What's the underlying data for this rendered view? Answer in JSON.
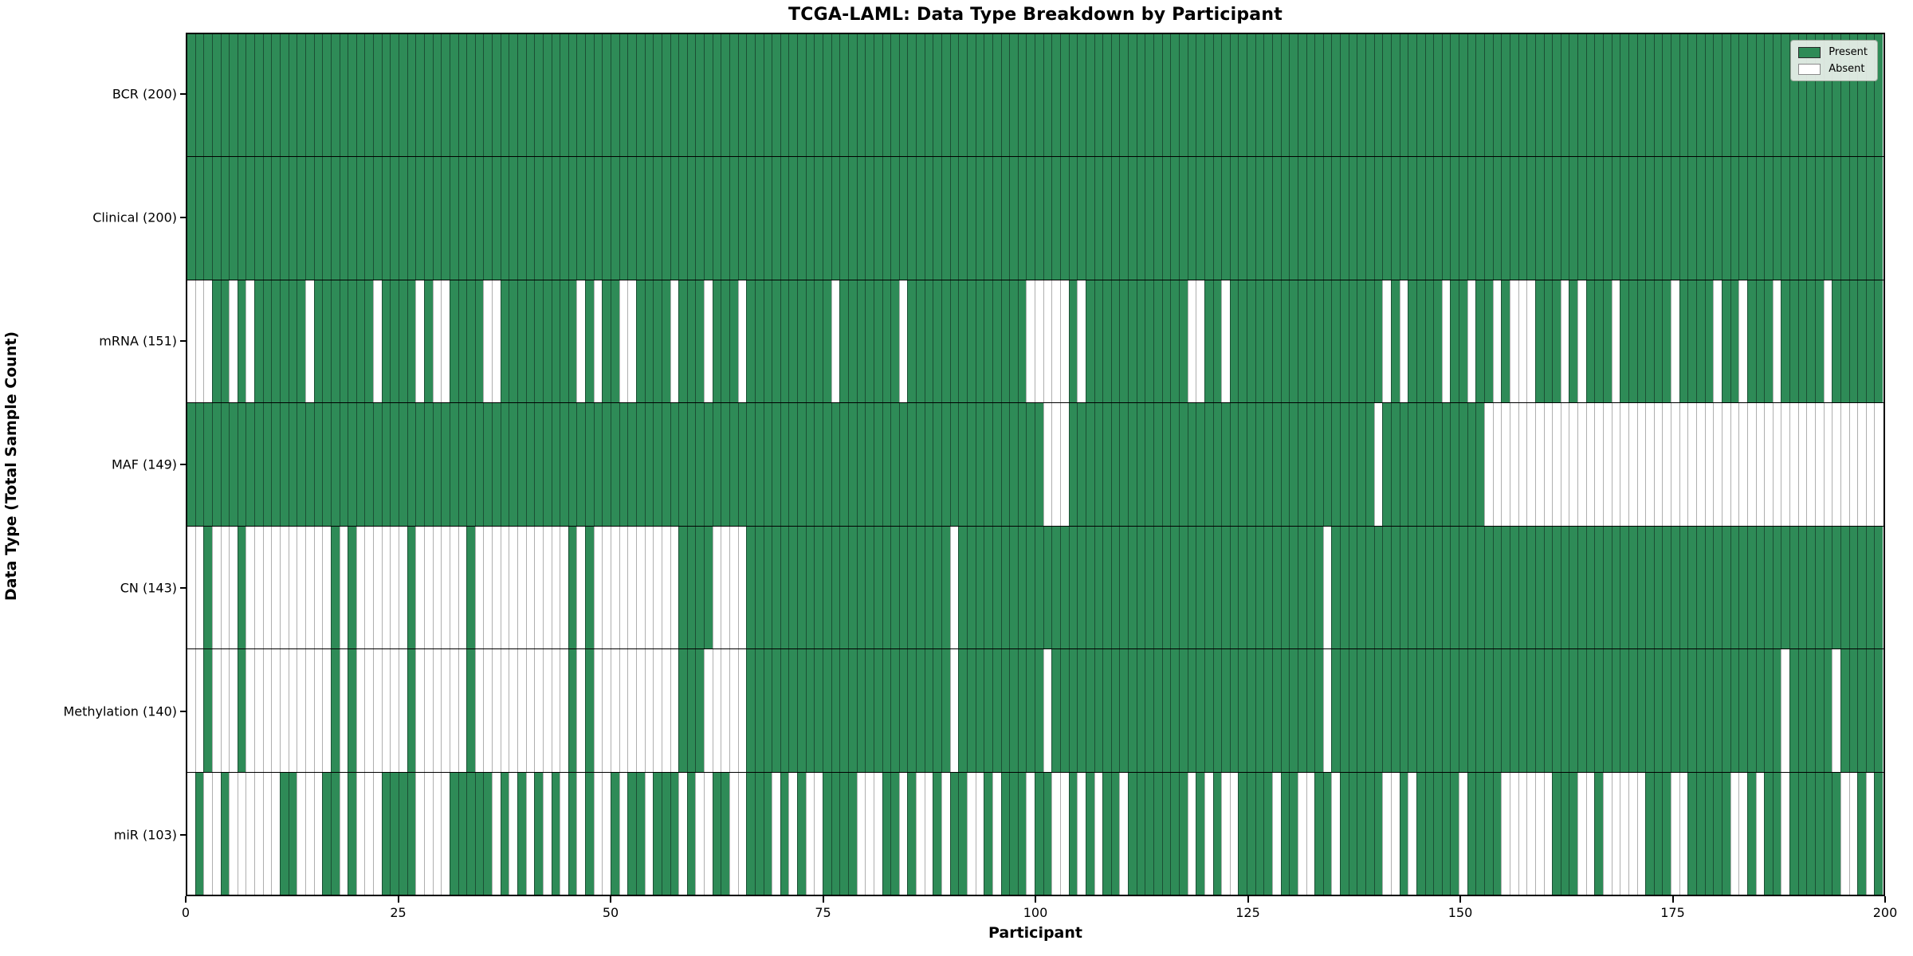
{
  "title": "TCGA-LAML: Data Type Breakdown by Participant",
  "xlabel": "Participant",
  "ylabel": "Data Type (Total Sample Count)",
  "legend": {
    "present_label": "Present",
    "absent_label": "Absent"
  },
  "colors": {
    "present": "#2e8b57",
    "absent": "#ffffff",
    "grid_edge_on_green": "#1f3d2b",
    "grid_edge_on_white": "#6e6e6e",
    "legend_background": "#eaf0ea",
    "axis": "#000000"
  },
  "chart_data": {
    "type": "heatmap",
    "title": "TCGA-LAML: Data Type Breakdown by Participant",
    "xlabel": "Participant",
    "ylabel": "Data Type (Total Sample Count)",
    "x_range": [
      0,
      200
    ],
    "x_ticks": [
      0,
      25,
      50,
      75,
      100,
      125,
      150,
      175,
      200
    ],
    "n_participants": 200,
    "legend_position": "upper right",
    "grid": false,
    "legend": [
      {
        "label": "Present",
        "color": "#2e8b57"
      },
      {
        "label": "Absent",
        "color": "#ffffff"
      }
    ],
    "rows": [
      {
        "label": "BCR (200)",
        "data_type": "BCR",
        "total": 200,
        "presence": "11111111111111111111111111111111111111111111111111111111111111111111111111111111111111111111111111111111111111111111111111111111111111111111111111111111111111111111111111111111111111111111111111111111"
      },
      {
        "label": "Clinical (200)",
        "data_type": "Clinical",
        "total": 200,
        "presence": "11111111111111111111111111111111111111111111111111111111111111111111111111111111111111111111111111111111111111111111111111111111111111111111111111111111111111111111111111111111111111111111111111111111"
      },
      {
        "label": "mRNA (151)",
        "data_type": "mRNA",
        "total": 151,
        "presence": "00011010111111011111110111101001111001111111110101100111101110111011111111110111111101111111111111100000101111111111110011011111111111111111101011110110110100011101011101111110111101101110111110111111"
      },
      {
        "label": "MAF (149)",
        "data_type": "MAF",
        "total": 149,
        "presence": "11111111111111111111111111111111111111111111111111111111111111111111111111111111111111111111111111111000111111111111111111111111111111111111011111111111100000000000000000000000000000000000000000000000"
      },
      {
        "label": "CN (143)",
        "data_type": "CN",
        "total": 143,
        "presence": "00100010000000000101000000100000010000000000010100000000001111000011111111111111111111111101111111111111111111111111111111111111111111011111111111111111111111111111111111111111111111111111111111111111"
      },
      {
        "label": "Methylation (140)",
        "data_type": "Methylation",
        "total": 140,
        "presence": "00100010000000000101000000100000010000000000010100000000001110000011111111111111111111111101111111111011111111111111111111111111111111011111111111111111111111111111111111111111111111111111011111011111"
      },
      {
        "label": "miR (103)",
        "data_type": "miR",
        "total": 103,
        "presence": "01001000000110001101000111100001111101010101010100101101110100110011101010011110001101001011001011101100101011011111110101001111011001101111100101111101111000000111001000001110011111001011011111100101"
      }
    ]
  }
}
